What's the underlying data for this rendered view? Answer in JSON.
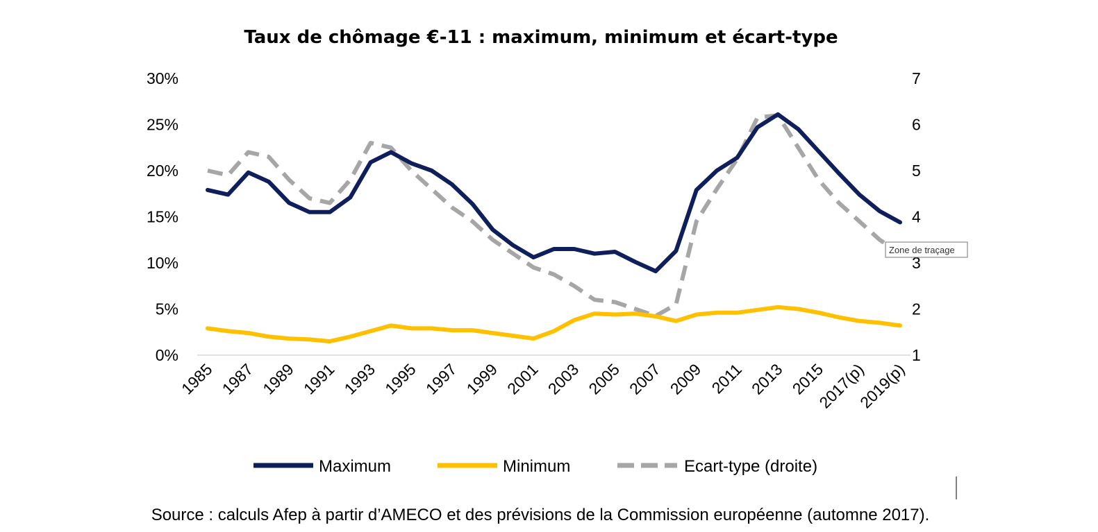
{
  "chart_data": {
    "type": "line",
    "title": "Taux de chômage €-11 : maximum, minimum et écart-type",
    "x": [
      "1985",
      "1986",
      "1987",
      "1988",
      "1989",
      "1990",
      "1991",
      "1992",
      "1993",
      "1994",
      "1995",
      "1996",
      "1997",
      "1998",
      "1999",
      "2000",
      "2001",
      "2002",
      "2003",
      "2004",
      "2005",
      "2006",
      "2007",
      "2008",
      "2009",
      "2010",
      "2011",
      "2012",
      "2013",
      "2014",
      "2015",
      "2016",
      "2017(p)",
      "2018(p)",
      "2019(p)"
    ],
    "x_tick_labels": [
      "1985",
      "1987",
      "1989",
      "1991",
      "1993",
      "1995",
      "1997",
      "1999",
      "2001",
      "2003",
      "2005",
      "2007",
      "2009",
      "2011",
      "2013",
      "2015",
      "2017(p)",
      "2019(p)"
    ],
    "y_left": {
      "ylim": [
        0,
        30
      ],
      "ticks": [
        "0%",
        "5%",
        "10%",
        "15%",
        "20%",
        "25%",
        "30%"
      ],
      "tick_values": [
        0,
        5,
        10,
        15,
        20,
        25,
        30
      ]
    },
    "y_right": {
      "ylim": [
        1,
        7
      ],
      "ticks": [
        "1",
        "2",
        "3",
        "4",
        "5",
        "6",
        "7"
      ],
      "tick_values": [
        1,
        2,
        3,
        4,
        5,
        6,
        7
      ]
    },
    "series": [
      {
        "name": "Maximum",
        "axis": "left",
        "color": "#0f1f5c",
        "style": "solid",
        "values": [
          17.9,
          17.4,
          19.8,
          18.8,
          16.5,
          15.5,
          15.5,
          17.1,
          20.9,
          22.0,
          20.8,
          20.0,
          18.5,
          16.4,
          13.6,
          11.9,
          10.6,
          11.5,
          11.5,
          11.0,
          11.2,
          10.1,
          9.1,
          11.3,
          17.9,
          20.0,
          21.4,
          24.7,
          26.1,
          24.5,
          22.1,
          19.7,
          17.4,
          15.6,
          14.4
        ]
      },
      {
        "name": "Minimum",
        "axis": "left",
        "color": "#ffc000",
        "style": "solid",
        "values": [
          2.9,
          2.6,
          2.4,
          2.0,
          1.8,
          1.7,
          1.5,
          2.0,
          2.6,
          3.2,
          2.9,
          2.9,
          2.7,
          2.7,
          2.4,
          2.1,
          1.8,
          2.6,
          3.8,
          4.5,
          4.4,
          4.5,
          4.2,
          3.7,
          4.4,
          4.6,
          4.6,
          4.9,
          5.2,
          5.0,
          4.6,
          4.1,
          3.7,
          3.5,
          3.2
        ]
      },
      {
        "name": "Ecart-type (droite)",
        "axis": "right",
        "color": "#a6a6a6",
        "style": "dashed",
        "values": [
          5.0,
          4.9,
          5.4,
          5.3,
          4.8,
          4.4,
          4.3,
          4.8,
          5.6,
          5.5,
          5.0,
          4.6,
          4.2,
          3.9,
          3.5,
          3.2,
          2.9,
          2.75,
          2.5,
          2.2,
          2.15,
          2.0,
          1.85,
          2.1,
          3.9,
          4.6,
          5.25,
          6.15,
          6.2,
          5.5,
          4.8,
          4.3,
          3.9,
          3.5,
          3.2
        ]
      }
    ],
    "legend_position": "bottom",
    "grid": false
  },
  "tooltip": "Zone de traçage",
  "source": "Source : calculs Afep à partir d’AMECO et des prévisions de la Commission européenne (automne 2017)."
}
